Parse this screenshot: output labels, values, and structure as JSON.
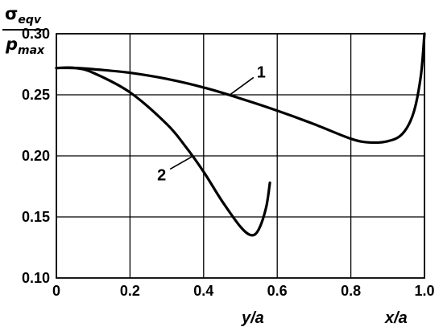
{
  "chart_data": {
    "type": "line",
    "ylabel": {
      "numerator": "σ",
      "numerator_sub": "eqv",
      "denominator": "p",
      "denominator_sub": "max"
    },
    "xlabels": [
      "y/a",
      "x/a"
    ],
    "xlim": [
      0,
      1.0
    ],
    "ylim": [
      0.1,
      0.3
    ],
    "x_ticks": [
      "0",
      "0.2",
      "0.4",
      "0.6",
      "0.8",
      "1.0"
    ],
    "y_ticks": [
      "0.30",
      "0.25",
      "0.20",
      "0.15",
      "0.10"
    ],
    "grid": true,
    "series": [
      {
        "name": "1",
        "x": [
          0,
          0.05,
          0.1,
          0.2,
          0.3,
          0.4,
          0.5,
          0.6,
          0.7,
          0.8,
          0.85,
          0.9,
          0.94,
          0.97,
          0.99,
          1.0
        ],
        "y": [
          0.272,
          0.272,
          0.271,
          0.268,
          0.263,
          0.256,
          0.247,
          0.237,
          0.226,
          0.214,
          0.211,
          0.212,
          0.218,
          0.235,
          0.265,
          0.3
        ]
      },
      {
        "name": "2",
        "x": [
          0,
          0.05,
          0.1,
          0.2,
          0.3,
          0.35,
          0.4,
          0.45,
          0.5,
          0.53,
          0.55,
          0.57,
          0.58
        ],
        "y": [
          0.272,
          0.272,
          0.268,
          0.252,
          0.226,
          0.208,
          0.187,
          0.163,
          0.142,
          0.135,
          0.14,
          0.158,
          0.178
        ]
      }
    ],
    "curve_labels": [
      {
        "text": "1",
        "series": 0,
        "at_x": 0.47
      },
      {
        "text": "2",
        "series": 1,
        "at_x": 0.37
      }
    ]
  }
}
